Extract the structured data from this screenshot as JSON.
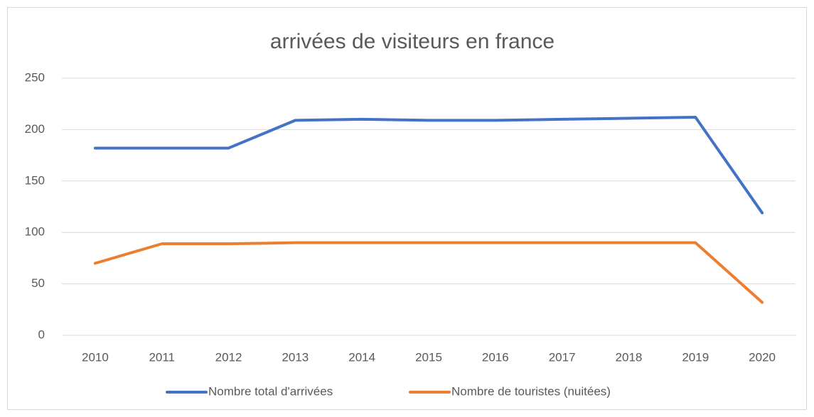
{
  "chart_data": {
    "type": "line",
    "title": "arrivées de visiteurs en france",
    "categories": [
      "2010",
      "2011",
      "2012",
      "2013",
      "2014",
      "2015",
      "2016",
      "2017",
      "2018",
      "2019",
      "2020"
    ],
    "series": [
      {
        "name": "Nombre total d'arrivées",
        "color": "#4472c4",
        "values": [
          182,
          182,
          182,
          209,
          210,
          209,
          209,
          210,
          211,
          212,
          119
        ]
      },
      {
        "name": "Nombre de touristes (nuitées)",
        "color": "#ed7d31",
        "values": [
          70,
          89,
          89,
          90,
          90,
          90,
          90,
          90,
          90,
          90,
          32
        ]
      }
    ],
    "ylim": [
      0,
      250
    ],
    "yticks": [
      0,
      50,
      100,
      150,
      200,
      250
    ],
    "grid": true,
    "legend": "bottom"
  }
}
